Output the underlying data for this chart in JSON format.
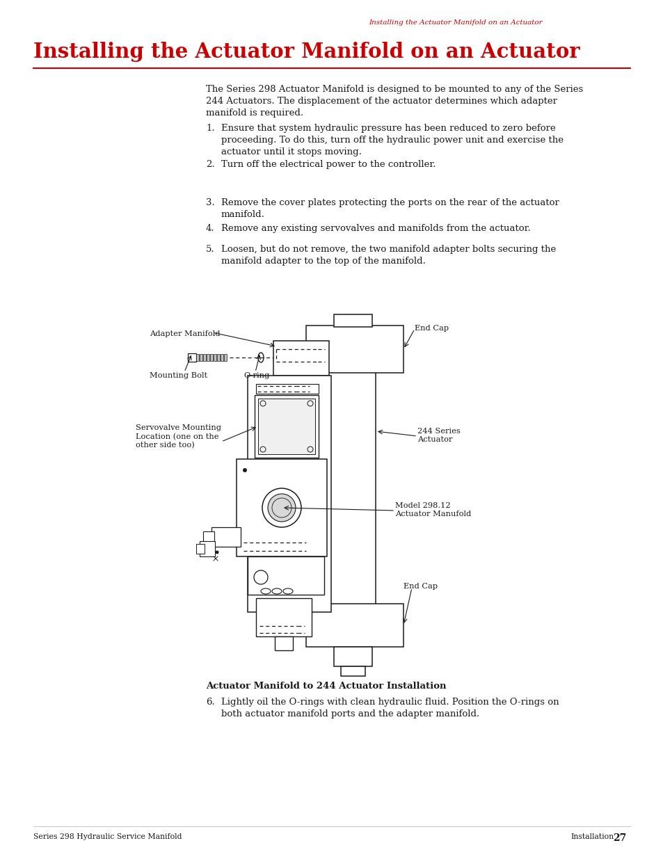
{
  "header_text": "Installing the Actuator Manifold on an Actuator",
  "header_color": "#cc0000",
  "title": "Installing the Actuator Manifold on an Actuator",
  "title_color": "#cc0000",
  "title_fontsize": 21,
  "body_text_color": "#1a1a1a",
  "body_fontsize": 9.5,
  "intro_text": "The Series 298 Actuator Manifold is designed to be mounted to any of the Series\n244 Actuators. The displacement of the actuator determines which adapter\nmanifold is required.",
  "steps": [
    "Ensure that system hydraulic pressure has been reduced to zero before\nproceeding. To do this, turn off the hydraulic power unit and exercise the\nactuator until it stops moving.",
    "Turn off the electrical power to the controller.",
    "Remove the cover plates protecting the ports on the rear of the actuator\nmanifold.",
    "Remove any existing servovalves and manifolds from the actuator.",
    "Loosen, but do not remove, the two manifold adapter bolts securing the\nmanifold adapter to the top of the manifold."
  ],
  "step6_text": "Lightly oil the O-rings with clean hydraulic fluid. Position the O-rings on\nboth actuator manifold ports and the adapter manifold.",
  "figure_caption": "Actuator Manifold to 244 Actuator Installation",
  "footer_left": "Series 298 Hydraulic Service Manifold",
  "footer_right": "Installation",
  "footer_page": "27",
  "bg_color": "#ffffff",
  "red_color": "#cc0000",
  "diagram_line_color": "#1a1a1a"
}
